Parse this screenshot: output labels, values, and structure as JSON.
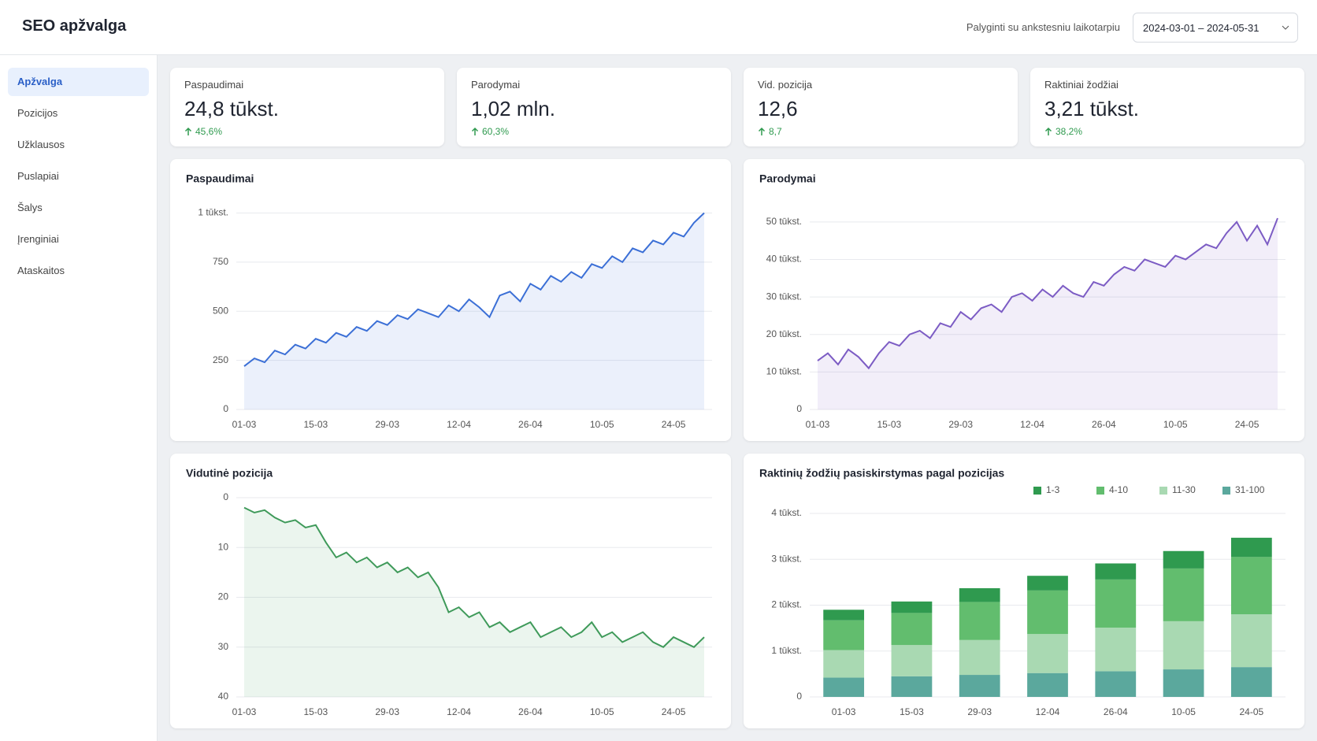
{
  "header": {
    "title": "SEO apžvalga",
    "compare": "Palyginti su ankstesniu laikotarpiu",
    "date_range": "2024-03-01 – 2024-05-31"
  },
  "nav": {
    "items": [
      "Apžvalga",
      "Pozicijos",
      "Užklausos",
      "Puslapiai",
      "Šalys",
      "Įrenginiai",
      "Ataskaitos"
    ],
    "active": 0
  },
  "kpis": [
    {
      "label": "Paspaudimai",
      "value": "24,8 tūkst.",
      "change": "45,6%"
    },
    {
      "label": "Parodymai",
      "value": "1,02 mln.",
      "change": "60,3%"
    },
    {
      "label": "Vid. pozicija",
      "value": "12,6",
      "change": "8,7"
    },
    {
      "label": "Raktiniai žodžiai",
      "value": "3,21 tūkst.",
      "change": "38,2%"
    }
  ],
  "chart_data": [
    {
      "type": "line",
      "title": "Paspaudimai",
      "color": "#3b6fd6",
      "grid": true,
      "categories": [
        "01-03",
        null,
        null,
        null,
        null,
        null,
        null,
        "15-03",
        null,
        null,
        null,
        null,
        null,
        null,
        "29-03",
        null,
        null,
        null,
        null,
        null,
        null,
        "12-04",
        null,
        null,
        null,
        null,
        null,
        null,
        "26-04",
        null,
        null,
        null,
        null,
        null,
        null,
        "10-05",
        null,
        null,
        null,
        null,
        null,
        null,
        "24-05",
        null,
        null,
        null
      ],
      "values": [
        220,
        260,
        240,
        300,
        280,
        330,
        310,
        360,
        340,
        390,
        370,
        420,
        400,
        450,
        430,
        480,
        460,
        510,
        490,
        470,
        530,
        500,
        560,
        520,
        470,
        580,
        600,
        550,
        640,
        610,
        680,
        650,
        700,
        670,
        740,
        720,
        780,
        750,
        820,
        800,
        860,
        840,
        900,
        880,
        950,
        1000
      ],
      "ylim": [
        0,
        1050
      ],
      "yticks": [
        0,
        250,
        500,
        750,
        {
          "value": 1000,
          "label": "1 tūkst."
        }
      ]
    },
    {
      "type": "line",
      "title": "Parodymai",
      "color": "#7c5cc4",
      "grid": true,
      "categories": [
        "01-03",
        null,
        null,
        null,
        null,
        null,
        null,
        "15-03",
        null,
        null,
        null,
        null,
        null,
        null,
        "29-03",
        null,
        null,
        null,
        null,
        null,
        null,
        "12-04",
        null,
        null,
        null,
        null,
        null,
        null,
        "26-04",
        null,
        null,
        null,
        null,
        null,
        null,
        "10-05",
        null,
        null,
        null,
        null,
        null,
        null,
        "24-05",
        null,
        null,
        null
      ],
      "values": [
        13000,
        15000,
        12000,
        16000,
        14000,
        11000,
        15000,
        18000,
        17000,
        20000,
        21000,
        19000,
        23000,
        22000,
        26000,
        24000,
        27000,
        28000,
        26000,
        30000,
        31000,
        29000,
        32000,
        30000,
        33000,
        31000,
        30000,
        34000,
        33000,
        36000,
        38000,
        37000,
        40000,
        39000,
        38000,
        41000,
        40000,
        42000,
        44000,
        43000,
        47000,
        50000,
        45000,
        49000,
        44000,
        51000
      ],
      "ylim": [
        0,
        55000
      ],
      "yticks": [
        0,
        {
          "value": 10000,
          "label": "10 tūkst."
        },
        {
          "value": 20000,
          "label": "20 tūkst."
        },
        {
          "value": 30000,
          "label": "30 tūkst."
        },
        {
          "value": 40000,
          "label": "40 tūkst."
        },
        {
          "value": 50000,
          "label": "50 tūkst."
        }
      ]
    },
    {
      "type": "line",
      "title": "Vidutinė pozicija",
      "color": "#3f9a5a",
      "grid": true,
      "y_inverted": true,
      "categories": [
        "01-03",
        null,
        null,
        null,
        null,
        null,
        null,
        "15-03",
        null,
        null,
        null,
        null,
        null,
        null,
        "29-03",
        null,
        null,
        null,
        null,
        null,
        null,
        "12-04",
        null,
        null,
        null,
        null,
        null,
        null,
        "26-04",
        null,
        null,
        null,
        null,
        null,
        null,
        "10-05",
        null,
        null,
        null,
        null,
        null,
        null,
        "24-05",
        null,
        null,
        null
      ],
      "values": [
        2,
        3,
        2.5,
        4,
        5,
        4.5,
        6,
        5.5,
        9,
        12,
        11,
        13,
        12,
        14,
        13,
        15,
        14,
        16,
        15,
        18,
        23,
        22,
        24,
        23,
        26,
        25,
        27,
        26,
        25,
        28,
        27,
        26,
        28,
        27,
        25,
        28,
        27,
        29,
        28,
        27,
        29,
        30,
        28,
        29,
        30,
        28
      ],
      "ylim": [
        0,
        40
      ],
      "yticks": [
        0,
        10,
        20,
        30,
        40
      ]
    },
    {
      "type": "stacked_bar",
      "title": "Raktinių žodžių pasiskirstymas pagal pozicijas",
      "grid": true,
      "categories": [
        "01-03",
        "15-03",
        "29-03",
        "12-04",
        "26-04",
        "10-05",
        "24-05"
      ],
      "series": [
        {
          "name": "1-3",
          "color": "#2f9a4f",
          "values": [
            230,
            250,
            300,
            320,
            350,
            380,
            420
          ]
        },
        {
          "name": "4-10",
          "color": "#62bd6e",
          "values": [
            650,
            700,
            830,
            950,
            1050,
            1150,
            1250
          ]
        },
        {
          "name": "11-30",
          "color": "#a9d9b2",
          "values": [
            600,
            680,
            760,
            850,
            950,
            1050,
            1150
          ]
        },
        {
          "name": "31-100",
          "color": "#5ba89d",
          "values": [
            420,
            450,
            480,
            520,
            560,
            600,
            650
          ]
        }
      ],
      "ylim": [
        0,
        4000
      ],
      "yticks": [
        0,
        {
          "value": 1000,
          "label": "1 tūkst."
        },
        {
          "value": 2000,
          "label": "2 tūkst."
        },
        {
          "value": 3000,
          "label": "3 tūkst."
        },
        {
          "value": 4000,
          "label": "4 tūkst."
        }
      ]
    }
  ]
}
